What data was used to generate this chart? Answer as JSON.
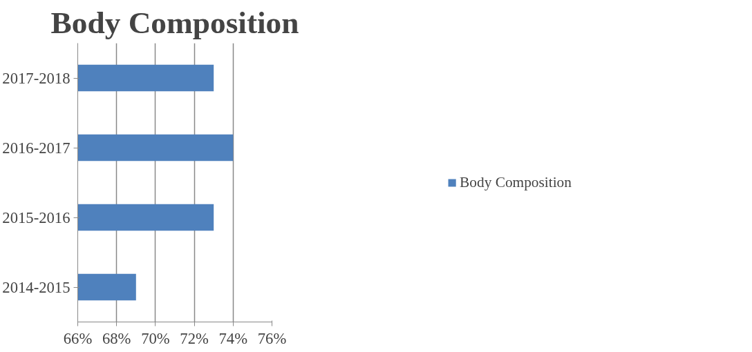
{
  "chart_data": {
    "type": "bar",
    "orientation": "horizontal",
    "title": "Body Composition",
    "categories": [
      "2017-2018",
      "2016-2017",
      "2015-2016",
      "2014-2015"
    ],
    "series": [
      {
        "name": "Body Composition",
        "color": "#4f81bd",
        "values": [
          73,
          74,
          73,
          69
        ]
      }
    ],
    "xlim": [
      66,
      76
    ],
    "xticks": [
      {
        "value": 66,
        "label": "66%"
      },
      {
        "value": 68,
        "label": "68%"
      },
      {
        "value": 70,
        "label": "70%"
      },
      {
        "value": 72,
        "label": "72%"
      },
      {
        "value": 74,
        "label": "74%"
      },
      {
        "value": 76,
        "label": "76%"
      }
    ],
    "grid": "x",
    "legend": "right"
  }
}
